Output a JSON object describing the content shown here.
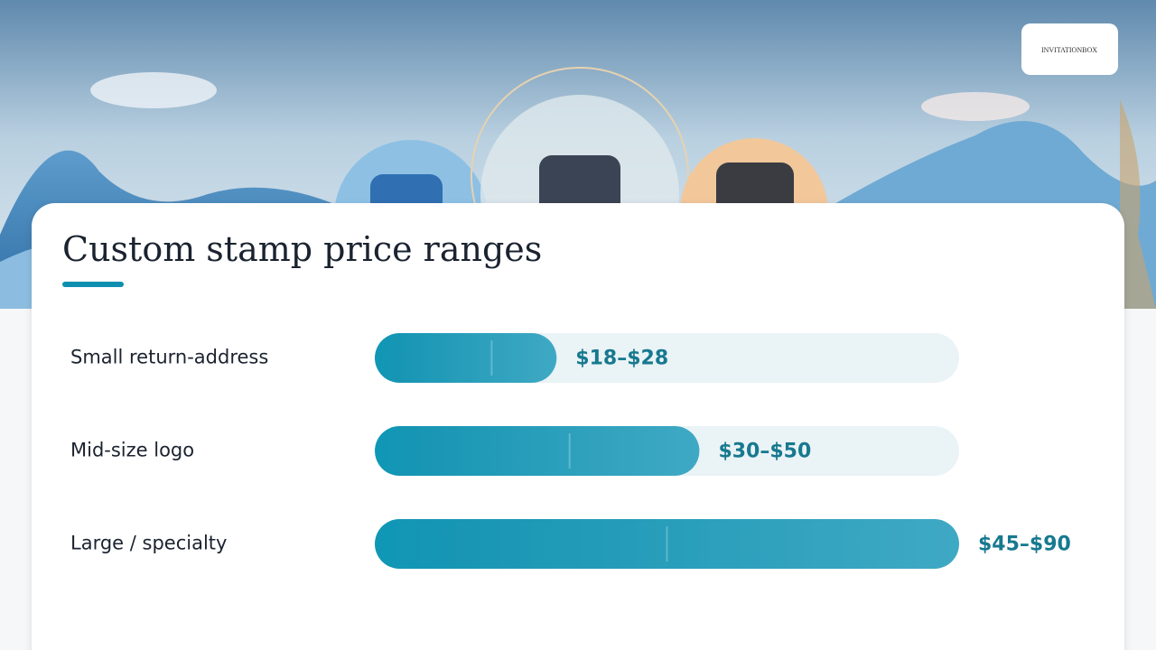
{
  "logo": "INVITATIONBOX",
  "chart_data": {
    "type": "bar",
    "orientation": "horizontal",
    "title": "Custom stamp price ranges",
    "categories": [
      "Small return-address",
      "Mid-size logo",
      "Large / specialty"
    ],
    "low": [
      18,
      30,
      45
    ],
    "high": [
      28,
      50,
      90
    ],
    "value_labels": [
      "$18–$28",
      "$30–$50",
      "$45–$90"
    ],
    "color": "#0f97b5"
  }
}
